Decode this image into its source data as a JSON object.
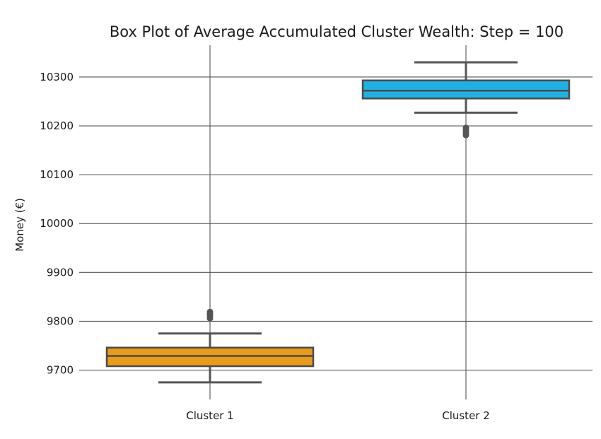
{
  "chart_data": {
    "type": "box",
    "title": "Box Plot of Average Accumulated Cluster Wealth: Step = 100",
    "xlabel": "",
    "ylabel": "Money (€)",
    "ylim": [
      9640,
      10365
    ],
    "yticks": [
      9700,
      9800,
      9900,
      10000,
      10100,
      10200,
      10300
    ],
    "grid": true,
    "categories": [
      "Cluster 1",
      "Cluster 2"
    ],
    "boxes": [
      {
        "category": "Cluster 1",
        "color": "#E89B1C",
        "whisker_low": 9675,
        "q1": 9708,
        "median": 9729,
        "q3": 9746,
        "whisker_high": 9775,
        "outliers": [
          9806,
          9811,
          9815,
          9819
        ]
      },
      {
        "category": "Cluster 2",
        "color": "#21B0E3",
        "whisker_low": 10227,
        "q1": 10256,
        "median": 10272,
        "q3": 10293,
        "whisker_high": 10330,
        "outliers": [
          10181,
          10186,
          10191,
          10196
        ]
      }
    ]
  }
}
